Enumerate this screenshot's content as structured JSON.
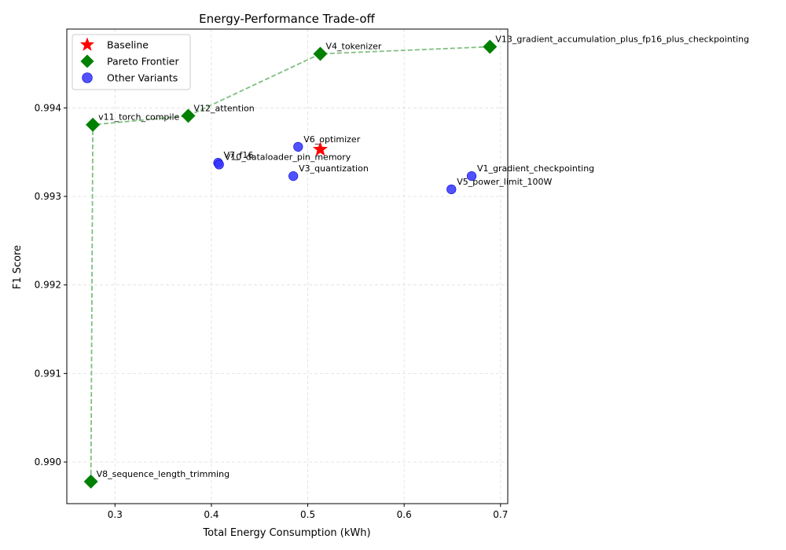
{
  "chart_data": {
    "type": "scatter",
    "title": "Energy-Performance Trade-off",
    "xlabel": "Total Energy Consumption (kWh)",
    "ylabel": "F1 Score",
    "xlim": [
      0.25,
      0.7075
    ],
    "ylim": [
      0.98953,
      0.99489
    ],
    "xticks": [
      0.3,
      0.4,
      0.5,
      0.6,
      0.7
    ],
    "xtick_labels": [
      "0.3",
      "0.4",
      "0.5",
      "0.6",
      "0.7"
    ],
    "yticks": [
      0.99,
      0.991,
      0.992,
      0.993,
      0.994
    ],
    "ytick_labels": [
      "0.990",
      "0.991",
      "0.992",
      "0.993",
      "0.994"
    ],
    "grid": true,
    "legend_position": "top-left",
    "colors": {
      "baseline": "#ff0000",
      "pareto": "#008000",
      "pareto_line": "#7fbf7f",
      "other": "#3333ff",
      "other_edge": "#0000cc"
    },
    "series": [
      {
        "name": "Baseline",
        "marker": "star",
        "points": [
          {
            "label": "",
            "x": 0.513,
            "y": 0.99353
          }
        ]
      },
      {
        "name": "Pareto Frontier",
        "marker": "diamond",
        "points": [
          {
            "label": "V8_sequence_length_trimming",
            "x": 0.275,
            "y": 0.98978
          },
          {
            "label": "v11_torch_compile",
            "x": 0.277,
            "y": 0.99381
          },
          {
            "label": "V12_attention",
            "x": 0.376,
            "y": 0.99391
          },
          {
            "label": "V4_tokenizer",
            "x": 0.513,
            "y": 0.99461
          },
          {
            "label": "V13_gradient_accumulation_plus_fp16_plus_checkpointing",
            "x": 0.689,
            "y": 0.99469
          }
        ]
      },
      {
        "name": "Other Variants",
        "marker": "circle",
        "points": [
          {
            "label": "V7_f16",
            "x": 0.407,
            "y": 0.99338
          },
          {
            "label": "V10_dataloader_pin_memory",
            "x": 0.408,
            "y": 0.99336
          },
          {
            "label": "V6_optimizer",
            "x": 0.49,
            "y": 0.99356
          },
          {
            "label": "V3_quantization",
            "x": 0.485,
            "y": 0.99323
          },
          {
            "label": "V1_gradient_checkpointing",
            "x": 0.67,
            "y": 0.99323
          },
          {
            "label": "V5_power_limit_100W",
            "x": 0.649,
            "y": 0.99308
          }
        ]
      }
    ]
  }
}
